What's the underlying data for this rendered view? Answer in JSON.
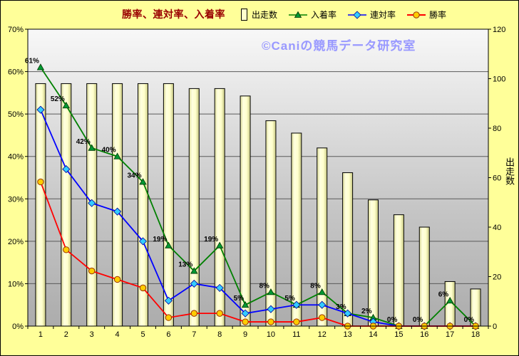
{
  "title": "勝率、連対率、入着率",
  "watermark": "©Caniの競馬データ研究室",
  "legend": {
    "items": [
      {
        "label": "出走数"
      },
      {
        "label": "入着率"
      },
      {
        "label": "連対率"
      },
      {
        "label": "勝率"
      }
    ]
  },
  "colors": {
    "page_background": "#FFFF99",
    "plot_gradient_top": "#F8F8F8",
    "plot_gradient_bottom": "#ACACAC",
    "title_text": "#990000",
    "watermark_text": "#9999FF",
    "bar_fill": "#FFFFCC",
    "bar_border": "#000000",
    "grid_line": "#5A5A5A",
    "axis_text": "#000000"
  },
  "chart_data": {
    "type": "bar+line",
    "title": "勝率、連対率、入着率",
    "categories": [
      "1",
      "2",
      "3",
      "4",
      "5",
      "6",
      "7",
      "8",
      "9",
      "10",
      "11",
      "12",
      "13",
      "14",
      "15",
      "16",
      "17",
      "18"
    ],
    "left_axis": {
      "min": 0,
      "max": 70,
      "tick_step": 10,
      "tick_labels": [
        "0%",
        "10%",
        "20%",
        "30%",
        "40%",
        "50%",
        "60%",
        "70%"
      ]
    },
    "right_axis": {
      "label": "出走数",
      "min": 0,
      "max": 120,
      "tick_step": 20,
      "tick_labels": [
        "0",
        "20",
        "40",
        "60",
        "80",
        "100",
        "120"
      ]
    },
    "series": [
      {
        "id": "starts",
        "name": "出走数",
        "type": "bar",
        "axis": "right",
        "values": [
          98,
          98,
          98,
          98,
          98,
          98,
          96,
          96,
          93,
          83,
          78,
          72,
          62,
          51,
          45,
          40,
          18,
          15
        ]
      },
      {
        "id": "place-rate",
        "name": "入着率",
        "type": "line",
        "axis": "left",
        "color": "#008000",
        "marker": "triangle",
        "marker_fill": "#009933",
        "marker_stroke": "#003300",
        "values": [
          61,
          52,
          42,
          40,
          34,
          19,
          13,
          19,
          5,
          8,
          5,
          8,
          3,
          2,
          0,
          0,
          6,
          0
        ],
        "point_labels": [
          "61%",
          "52%",
          "42%",
          "40%",
          "34%",
          "19%",
          "13%",
          "19%",
          "5%",
          "8%",
          "5%",
          "8%",
          "3%",
          "2%",
          "0%",
          "0%",
          "6%",
          "0%"
        ]
      },
      {
        "id": "quinella-rate",
        "name": "連対率",
        "type": "line",
        "axis": "left",
        "color": "#0000FF",
        "marker": "diamond",
        "marker_fill": "#33CCFF",
        "marker_stroke": "#000099",
        "values": [
          51,
          37,
          29,
          27,
          20,
          6,
          10,
          9,
          3,
          4,
          5,
          5,
          3,
          1,
          0,
          0,
          0,
          0
        ]
      },
      {
        "id": "win-rate",
        "name": "勝率",
        "type": "line",
        "axis": "left",
        "color": "#FF0000",
        "marker": "circle",
        "marker_fill": "#FFCC00",
        "marker_stroke": "#993300",
        "values": [
          34,
          18,
          13,
          11,
          9,
          2,
          3,
          3,
          1,
          1,
          1,
          2,
          0,
          0,
          0,
          0,
          0,
          0
        ]
      }
    ]
  }
}
